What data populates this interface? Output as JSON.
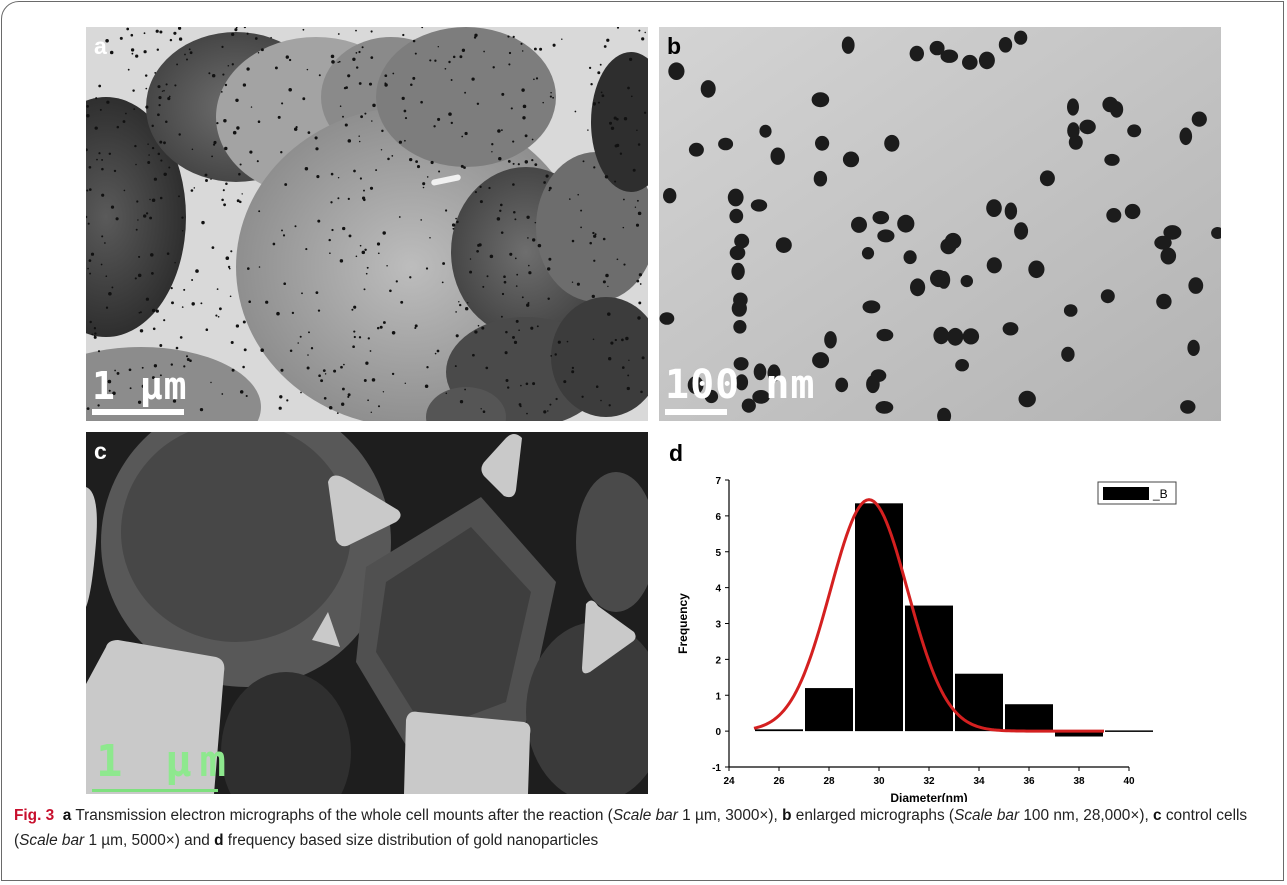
{
  "panels": {
    "a": {
      "label": "a",
      "scale_text": "1 µm"
    },
    "b": {
      "label": "b",
      "scale_text": "100 nm"
    },
    "c": {
      "label": "c",
      "scale_text": "1 µm"
    },
    "d": {
      "label": "d"
    }
  },
  "caption": {
    "fig_label": "Fig. 3",
    "parts": [
      {
        "style": "bold",
        "text": "a"
      },
      {
        "style": "normal",
        "text": " Transmission electron micrographs of the whole cell mounts after the reaction ("
      },
      {
        "style": "italic",
        "text": "Scale bar"
      },
      {
        "style": "normal",
        "text": " 1 µm, 3000×), "
      },
      {
        "style": "bold",
        "text": "b"
      },
      {
        "style": "normal",
        "text": " enlarged micrographs ("
      },
      {
        "style": "italic",
        "text": "Scale bar"
      },
      {
        "style": "normal",
        "text": " 100 nm, 28,000×), "
      },
      {
        "style": "bold",
        "text": "c"
      },
      {
        "style": "normal",
        "text": " control cells ("
      },
      {
        "style": "italic",
        "text": "Scale bar"
      },
      {
        "style": "normal",
        "text": " 1 µm, 5000×) and "
      },
      {
        "style": "bold",
        "text": "d"
      },
      {
        "style": "normal",
        "text": " frequency based size distribution of gold nanoparticles"
      }
    ]
  },
  "chart_data": {
    "type": "bar",
    "xlabel": "Diameter(nm)",
    "ylabel": "Frequency",
    "xlim": [
      24,
      40
    ],
    "ylim": [
      -1,
      7
    ],
    "x_ticks": [
      24,
      26,
      28,
      30,
      32,
      34,
      36,
      38,
      40
    ],
    "y_ticks": [
      -1,
      0,
      1,
      2,
      3,
      4,
      5,
      6,
      7
    ],
    "bars": [
      {
        "x_start": 25,
        "x_end": 27,
        "value": 0.05
      },
      {
        "x_start": 27,
        "x_end": 29,
        "value": 1.2
      },
      {
        "x_start": 29,
        "x_end": 31,
        "value": 6.35
      },
      {
        "x_start": 31,
        "x_end": 33,
        "value": 3.5
      },
      {
        "x_start": 33,
        "x_end": 35,
        "value": 1.6
      },
      {
        "x_start": 35,
        "x_end": 37,
        "value": 0.75
      },
      {
        "x_start": 37,
        "x_end": 39,
        "value": -0.15
      },
      {
        "x_start": 39,
        "x_end": 41,
        "value": 0.02
      }
    ],
    "fit": {
      "type": "gaussian",
      "center": 29.6,
      "sigma": 1.55,
      "amplitude": 6.45,
      "x_range": [
        25,
        39
      ],
      "color": "#d42020"
    },
    "legend": {
      "label": "_B",
      "position": "top-right"
    },
    "bar_color": "#000000"
  }
}
